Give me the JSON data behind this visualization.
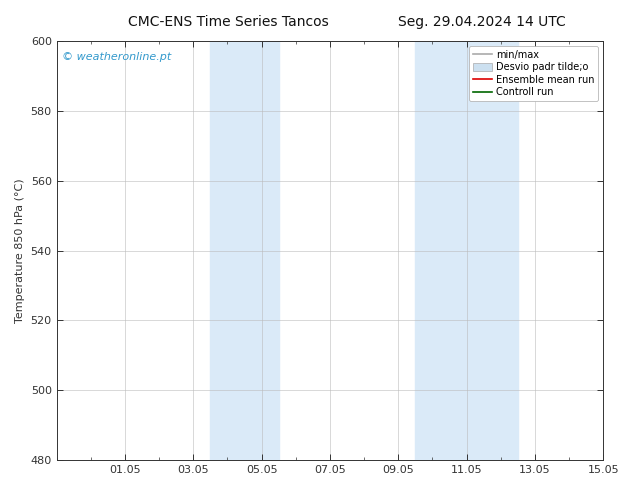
{
  "title_left": "CMC-ENS Time Series Tancos",
  "title_right": "Seg. 29.04.2024 14 UTC",
  "ylabel": "Temperature 850 hPa (°C)",
  "ylim": [
    480,
    600
  ],
  "yticks": [
    480,
    500,
    520,
    540,
    560,
    580,
    600
  ],
  "xlim": [
    0,
    16
  ],
  "xtick_labels": [
    "01.05",
    "03.05",
    "05.05",
    "07.05",
    "09.05",
    "11.05",
    "13.05",
    "15.05"
  ],
  "xtick_positions": [
    2,
    4,
    6,
    8,
    10,
    12,
    14,
    16
  ],
  "background_color": "#ffffff",
  "plot_bg_color": "#ffffff",
  "shaded_regions": [
    {
      "x_start": 4.5,
      "x_end": 6.5,
      "color": "#daeaf8"
    },
    {
      "x_start": 10.5,
      "x_end": 13.5,
      "color": "#daeaf8"
    }
  ],
  "watermark_text": "© weatheronline.pt",
  "watermark_color": "#3399cc",
  "legend_entries": [
    {
      "label": "min/max",
      "type": "line",
      "color": "#aaaaaa",
      "lw": 1.2
    },
    {
      "label": "Desvio padr tilde;o",
      "type": "patch",
      "color": "#cce0f0",
      "edgecolor": "#aaaaaa"
    },
    {
      "label": "Ensemble mean run",
      "type": "line",
      "color": "#dd0000",
      "lw": 1.2
    },
    {
      "label": "Controll run",
      "type": "line",
      "color": "#006600",
      "lw": 1.2
    }
  ],
  "grid_color": "#bbbbbb",
  "grid_ls": "-",
  "grid_lw": 0.4,
  "tick_color": "#333333",
  "axis_color": "#333333",
  "font_size": 8,
  "title_font_size": 10,
  "ylabel_fontsize": 8
}
